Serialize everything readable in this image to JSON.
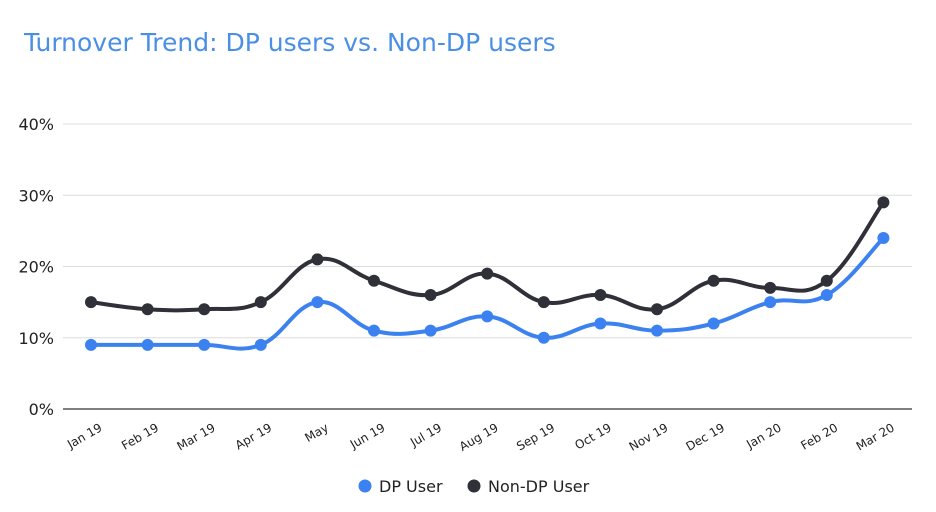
{
  "chart_data": {
    "type": "line",
    "title": "Turnover Trend: DP users vs. Non-DP users",
    "xlabel": "",
    "ylabel": "",
    "categories": [
      "Jan 19",
      "Feb 19",
      "Mar 19",
      "Apr 19",
      "May",
      "Jun 19",
      "Jul 19",
      "Aug 19",
      "Sep 19",
      "Oct 19",
      "Nov 19",
      "Dec 19",
      "Jan 20",
      "Feb 20",
      "Mar 20"
    ],
    "y_ticks": [
      "0%",
      "10%",
      "20%",
      "30%",
      "40%"
    ],
    "ylim": [
      0,
      40
    ],
    "grid": true,
    "legend_position": "bottom",
    "series": [
      {
        "name": "DP User",
        "color": "#3b82f0",
        "values": [
          9,
          9,
          9,
          9,
          15,
          11,
          11,
          13,
          10,
          12,
          11,
          12,
          15,
          16,
          24
        ]
      },
      {
        "name": "Non-DP User",
        "color": "#2f3038",
        "values": [
          15,
          14,
          14,
          15,
          21,
          18,
          16,
          19,
          15,
          16,
          14,
          18,
          17,
          18,
          29
        ]
      }
    ]
  }
}
